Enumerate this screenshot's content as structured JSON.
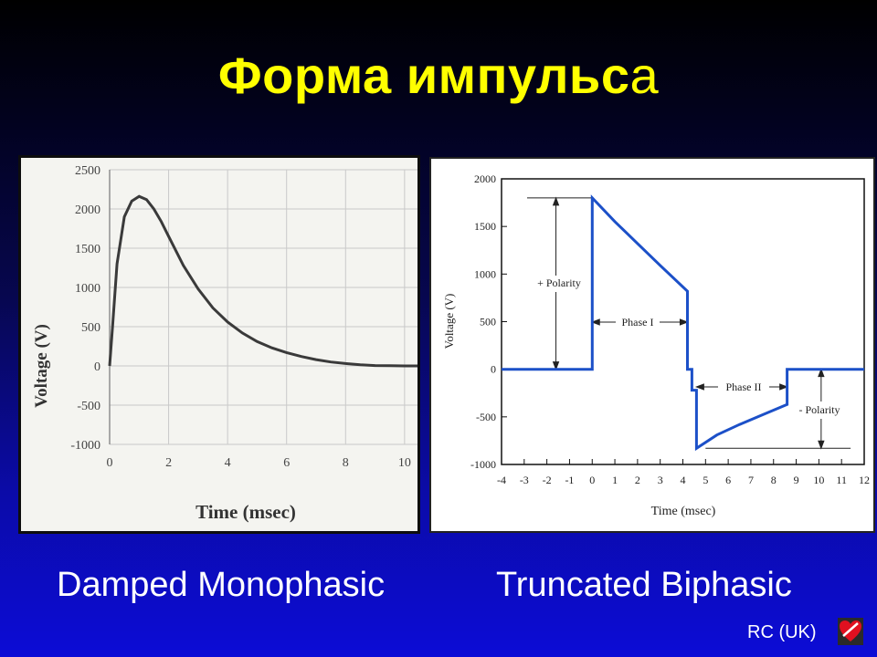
{
  "slide": {
    "title_main": "Форма импульс",
    "title_tail": "а",
    "caption_left": "Damped Monophasic",
    "caption_right": "Truncated Biphasic",
    "credit": "RC (UK)",
    "logo_icon": "heart-logo-icon",
    "colors": {
      "title": "#ffff00",
      "line_left": "#3a3a3a",
      "line_right": "#1c50c8"
    }
  },
  "chart_data": [
    {
      "type": "line",
      "title": "",
      "xlabel": "Time (msec)",
      "ylabel": "Voltage (V)",
      "xlim": [
        0,
        10.5
      ],
      "ylim": [
        -1000,
        2500
      ],
      "xticks": [
        0,
        2,
        4,
        6,
        8,
        10
      ],
      "yticks": [
        2500,
        2000,
        1500,
        1000,
        500,
        0,
        -500,
        -1000
      ],
      "grid": true,
      "series": [
        {
          "x": [
            0,
            0.1,
            0.25,
            0.5,
            0.75,
            1.0,
            1.25,
            1.5,
            1.75,
            2.0,
            2.5,
            3.0,
            3.5,
            4.0,
            4.5,
            5.0,
            5.5,
            6.0,
            6.5,
            7.0,
            7.5,
            8.0,
            8.5,
            9.0,
            9.5,
            10.0,
            10.5
          ],
          "y": [
            0,
            500,
            1300,
            1900,
            2100,
            2160,
            2120,
            2000,
            1840,
            1650,
            1280,
            980,
            740,
            560,
            420,
            310,
            230,
            170,
            120,
            80,
            50,
            30,
            15,
            5,
            2,
            0,
            0
          ]
        }
      ]
    },
    {
      "type": "line",
      "title": "",
      "xlabel": "Time (msec)",
      "ylabel": "Voltage (V)",
      "xlim": [
        -4,
        12
      ],
      "ylim": [
        -1000,
        2000
      ],
      "xticks": [
        -4,
        -3,
        -2,
        -1,
        0,
        1,
        2,
        3,
        4,
        5,
        6,
        7,
        8,
        9,
        10,
        11,
        12
      ],
      "yticks": [
        2000,
        1500,
        1000,
        500,
        0,
        -500,
        -1000
      ],
      "grid": false,
      "annotations": [
        "+ Polarity",
        "Phase I",
        "Phase II",
        "- Polarity"
      ],
      "series": [
        {
          "x": [
            -4,
            0,
            0,
            1,
            2,
            3,
            4.2,
            4.2,
            4.4,
            4.4,
            4.6,
            4.6,
            5.5,
            6.5,
            7.5,
            8.6,
            8.6,
            12
          ],
          "y": [
            0,
            0,
            1800,
            1550,
            1320,
            1090,
            820,
            0,
            0,
            -220,
            -220,
            -830,
            -690,
            -580,
            -480,
            -370,
            0,
            0
          ]
        }
      ]
    }
  ]
}
